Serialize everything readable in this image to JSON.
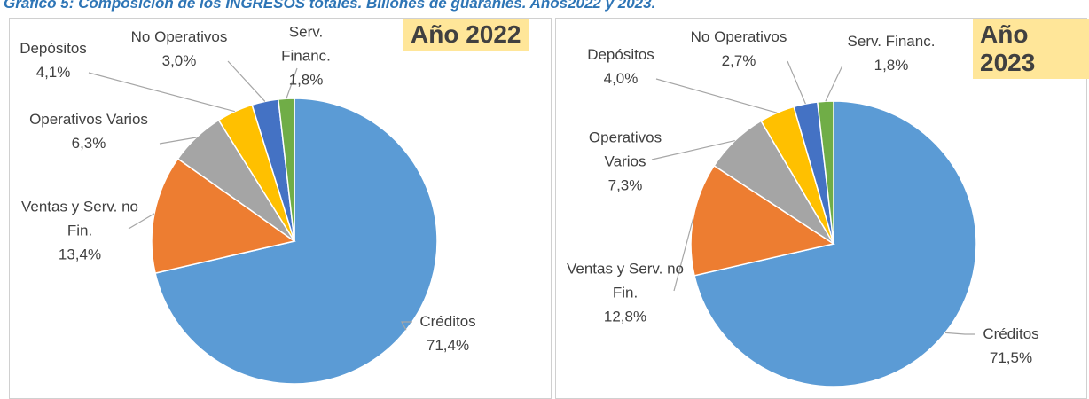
{
  "title": "Gráfico 5: Composición de los INGRESOS totales. Billones de guaraníes. Años2022 y 2023.",
  "chart_data": [
    {
      "type": "pie",
      "title": "Año 2022",
      "categories": [
        "Créditos",
        "Ventas y Serv. no Fin.",
        "Operativos Varios",
        "Depósitos",
        "No Operativos",
        "Serv. Financ."
      ],
      "values": [
        71.4,
        13.4,
        6.3,
        4.1,
        3.0,
        1.8
      ],
      "value_labels": [
        "71,4%",
        "13,4%",
        "6,3%",
        "4,1%",
        "3,0%",
        "1,8%"
      ],
      "colors": [
        "#5b9bd5",
        "#ed7d31",
        "#a5a5a5",
        "#ffc000",
        "#4472c4",
        "#70ad47"
      ]
    },
    {
      "type": "pie",
      "title": "Año 2023",
      "categories": [
        "Créditos",
        "Ventas y Serv. no Fin.",
        "Operativos Varios",
        "Depósitos",
        "No Operativos",
        "Serv. Financ."
      ],
      "values": [
        71.5,
        12.8,
        7.3,
        4.0,
        2.7,
        1.8
      ],
      "value_labels": [
        "71,5%",
        "12,8%",
        "7,3%",
        "4,0%",
        "2,7%",
        "1,8%"
      ],
      "colors": [
        "#5b9bd5",
        "#ed7d31",
        "#a5a5a5",
        "#ffc000",
        "#4472c4",
        "#70ad47"
      ]
    }
  ]
}
